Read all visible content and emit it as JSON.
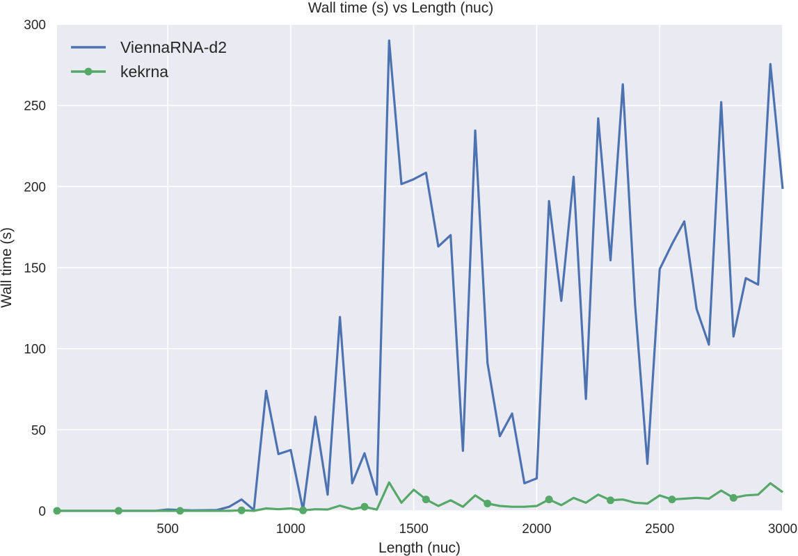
{
  "chart_data": {
    "type": "line",
    "title": "Wall time (s) vs Length (nuc)",
    "xlabel": "Length (nuc)",
    "ylabel": "Wall time (s)",
    "xlim": [
      50,
      3000
    ],
    "ylim": [
      0,
      300
    ],
    "xticks": [
      500,
      1000,
      1500,
      2000,
      2500,
      3000
    ],
    "yticks": [
      0,
      50,
      100,
      150,
      200,
      250,
      300
    ],
    "grid": true,
    "legend_position": "top-left",
    "background": "#eaeaf2",
    "series": [
      {
        "name": "ViennaRNA-d2",
        "color": "#4c72b0",
        "marker": "none",
        "x": [
          50,
          100,
          150,
          200,
          250,
          300,
          350,
          400,
          450,
          500,
          550,
          600,
          650,
          700,
          750,
          800,
          850,
          900,
          950,
          1000,
          1050,
          1100,
          1150,
          1200,
          1250,
          1300,
          1350,
          1400,
          1450,
          1500,
          1550,
          1600,
          1650,
          1700,
          1750,
          1800,
          1850,
          1900,
          1950,
          2000,
          2050,
          2100,
          2150,
          2200,
          2250,
          2300,
          2350,
          2400,
          2450,
          2500,
          2550,
          2600,
          2650,
          2700,
          2750,
          2800,
          2850,
          2900,
          2950,
          3000
        ],
        "y": [
          0,
          0,
          0,
          0,
          0,
          0,
          0,
          0,
          0,
          0.8,
          0.5,
          0.3,
          0.4,
          0.5,
          2.5,
          7,
          0.5,
          74,
          35,
          37.5,
          0.5,
          58,
          10,
          119.5,
          17,
          35.5,
          10,
          290,
          201.5,
          204.5,
          208.5,
          163,
          170,
          37,
          234.5,
          91,
          46,
          60,
          17,
          20,
          191,
          129.5,
          206,
          69,
          242,
          154.5,
          263,
          127,
          29,
          149,
          164.5,
          178.5,
          124.5,
          102.5,
          252,
          107.5,
          143.5,
          139.5,
          275.5,
          198.5
        ]
      },
      {
        "name": "kekrna",
        "color": "#55a868",
        "marker": "o",
        "x": [
          50,
          100,
          150,
          200,
          250,
          300,
          350,
          400,
          450,
          500,
          550,
          600,
          650,
          700,
          750,
          800,
          850,
          900,
          950,
          1000,
          1050,
          1100,
          1150,
          1200,
          1250,
          1300,
          1350,
          1400,
          1450,
          1500,
          1550,
          1600,
          1650,
          1700,
          1750,
          1800,
          1850,
          1900,
          1950,
          2000,
          2050,
          2100,
          2150,
          2200,
          2250,
          2300,
          2350,
          2400,
          2450,
          2500,
          2550,
          2600,
          2650,
          2700,
          2750,
          2800,
          2850,
          2900,
          2950,
          3000
        ],
        "y": [
          0,
          0,
          0,
          0,
          0,
          0,
          0,
          0,
          0,
          0,
          0,
          0,
          0,
          0,
          0,
          0.3,
          0,
          1.5,
          1,
          1.5,
          0.3,
          1,
          0.8,
          3.2,
          1,
          2.5,
          0.8,
          17.5,
          5,
          13,
          7,
          3,
          6.5,
          2.5,
          9.5,
          4.5,
          3,
          2.5,
          2.5,
          3,
          7,
          3.5,
          8,
          5,
          10,
          6.5,
          7,
          5,
          4.5,
          9.5,
          7,
          7.5,
          8,
          7.5,
          12.5,
          8,
          9.5,
          10,
          17,
          11.5
        ],
        "marker_x": [
          50,
          300,
          550,
          800,
          1050,
          1300,
          1550,
          1800,
          2050,
          2300,
          2550,
          2800
        ]
      }
    ]
  }
}
